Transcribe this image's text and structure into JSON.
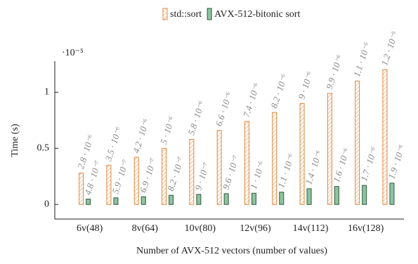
{
  "chart_data": {
    "type": "bar",
    "categories": [
      "6v(48)",
      null,
      "8v(64)",
      null,
      "10v(80)",
      null,
      "12v(96)",
      null,
      "14v(112)",
      null,
      "16v(128)",
      null
    ],
    "x_label": "Number of AVX-512 vectors (number of values)",
    "y_label": "Time (s)",
    "y_multiplier": "·10⁻⁵",
    "series": [
      {
        "name": "std::sort",
        "color": "#e0873a",
        "values": [
          0.28,
          0.35,
          0.42,
          0.5,
          0.58,
          0.66,
          0.74,
          0.82,
          0.9,
          0.99,
          1.1,
          1.2
        ],
        "value_labels": [
          "2.8 · 10⁻⁶",
          "3.5 · 10⁻⁶",
          "4.2 · 10⁻⁶",
          "5 · 10⁻⁶",
          "5.8 · 10⁻⁶",
          "6.6 · 10⁻⁶",
          "7.4 · 10⁻⁶",
          "8.2 · 10⁻⁶",
          "9 · 10⁻⁶",
          "9.9 · 10⁻⁶",
          "1.1 · 10⁻⁵",
          "1.2 · 10⁻⁵"
        ]
      },
      {
        "name": "AVX-512-bitonic sort",
        "color": "#8fc3a0",
        "values": [
          0.048,
          0.059,
          0.069,
          0.082,
          0.09,
          0.096,
          0.1,
          0.11,
          0.14,
          0.16,
          0.17,
          0.19
        ],
        "value_labels": [
          "4.8 · 10⁻⁷",
          "5.9 · 10⁻⁷",
          "6.9 · 10⁻⁷",
          "8.2 · 10⁻⁷",
          "9 · 10⁻⁷",
          "9.6 · 10⁻⁷",
          "1 · 10⁻⁶",
          "1.1 · 10⁻⁶",
          "1.4 · 10⁻⁶",
          "1.6 · 10⁻⁶",
          "1.7 · 10⁻⁶",
          "1.9 · 10⁻⁶"
        ]
      }
    ],
    "ylim": [
      -0.13,
      1.29
    ],
    "yticks": [
      0,
      0.5,
      1
    ],
    "legend": "top"
  }
}
